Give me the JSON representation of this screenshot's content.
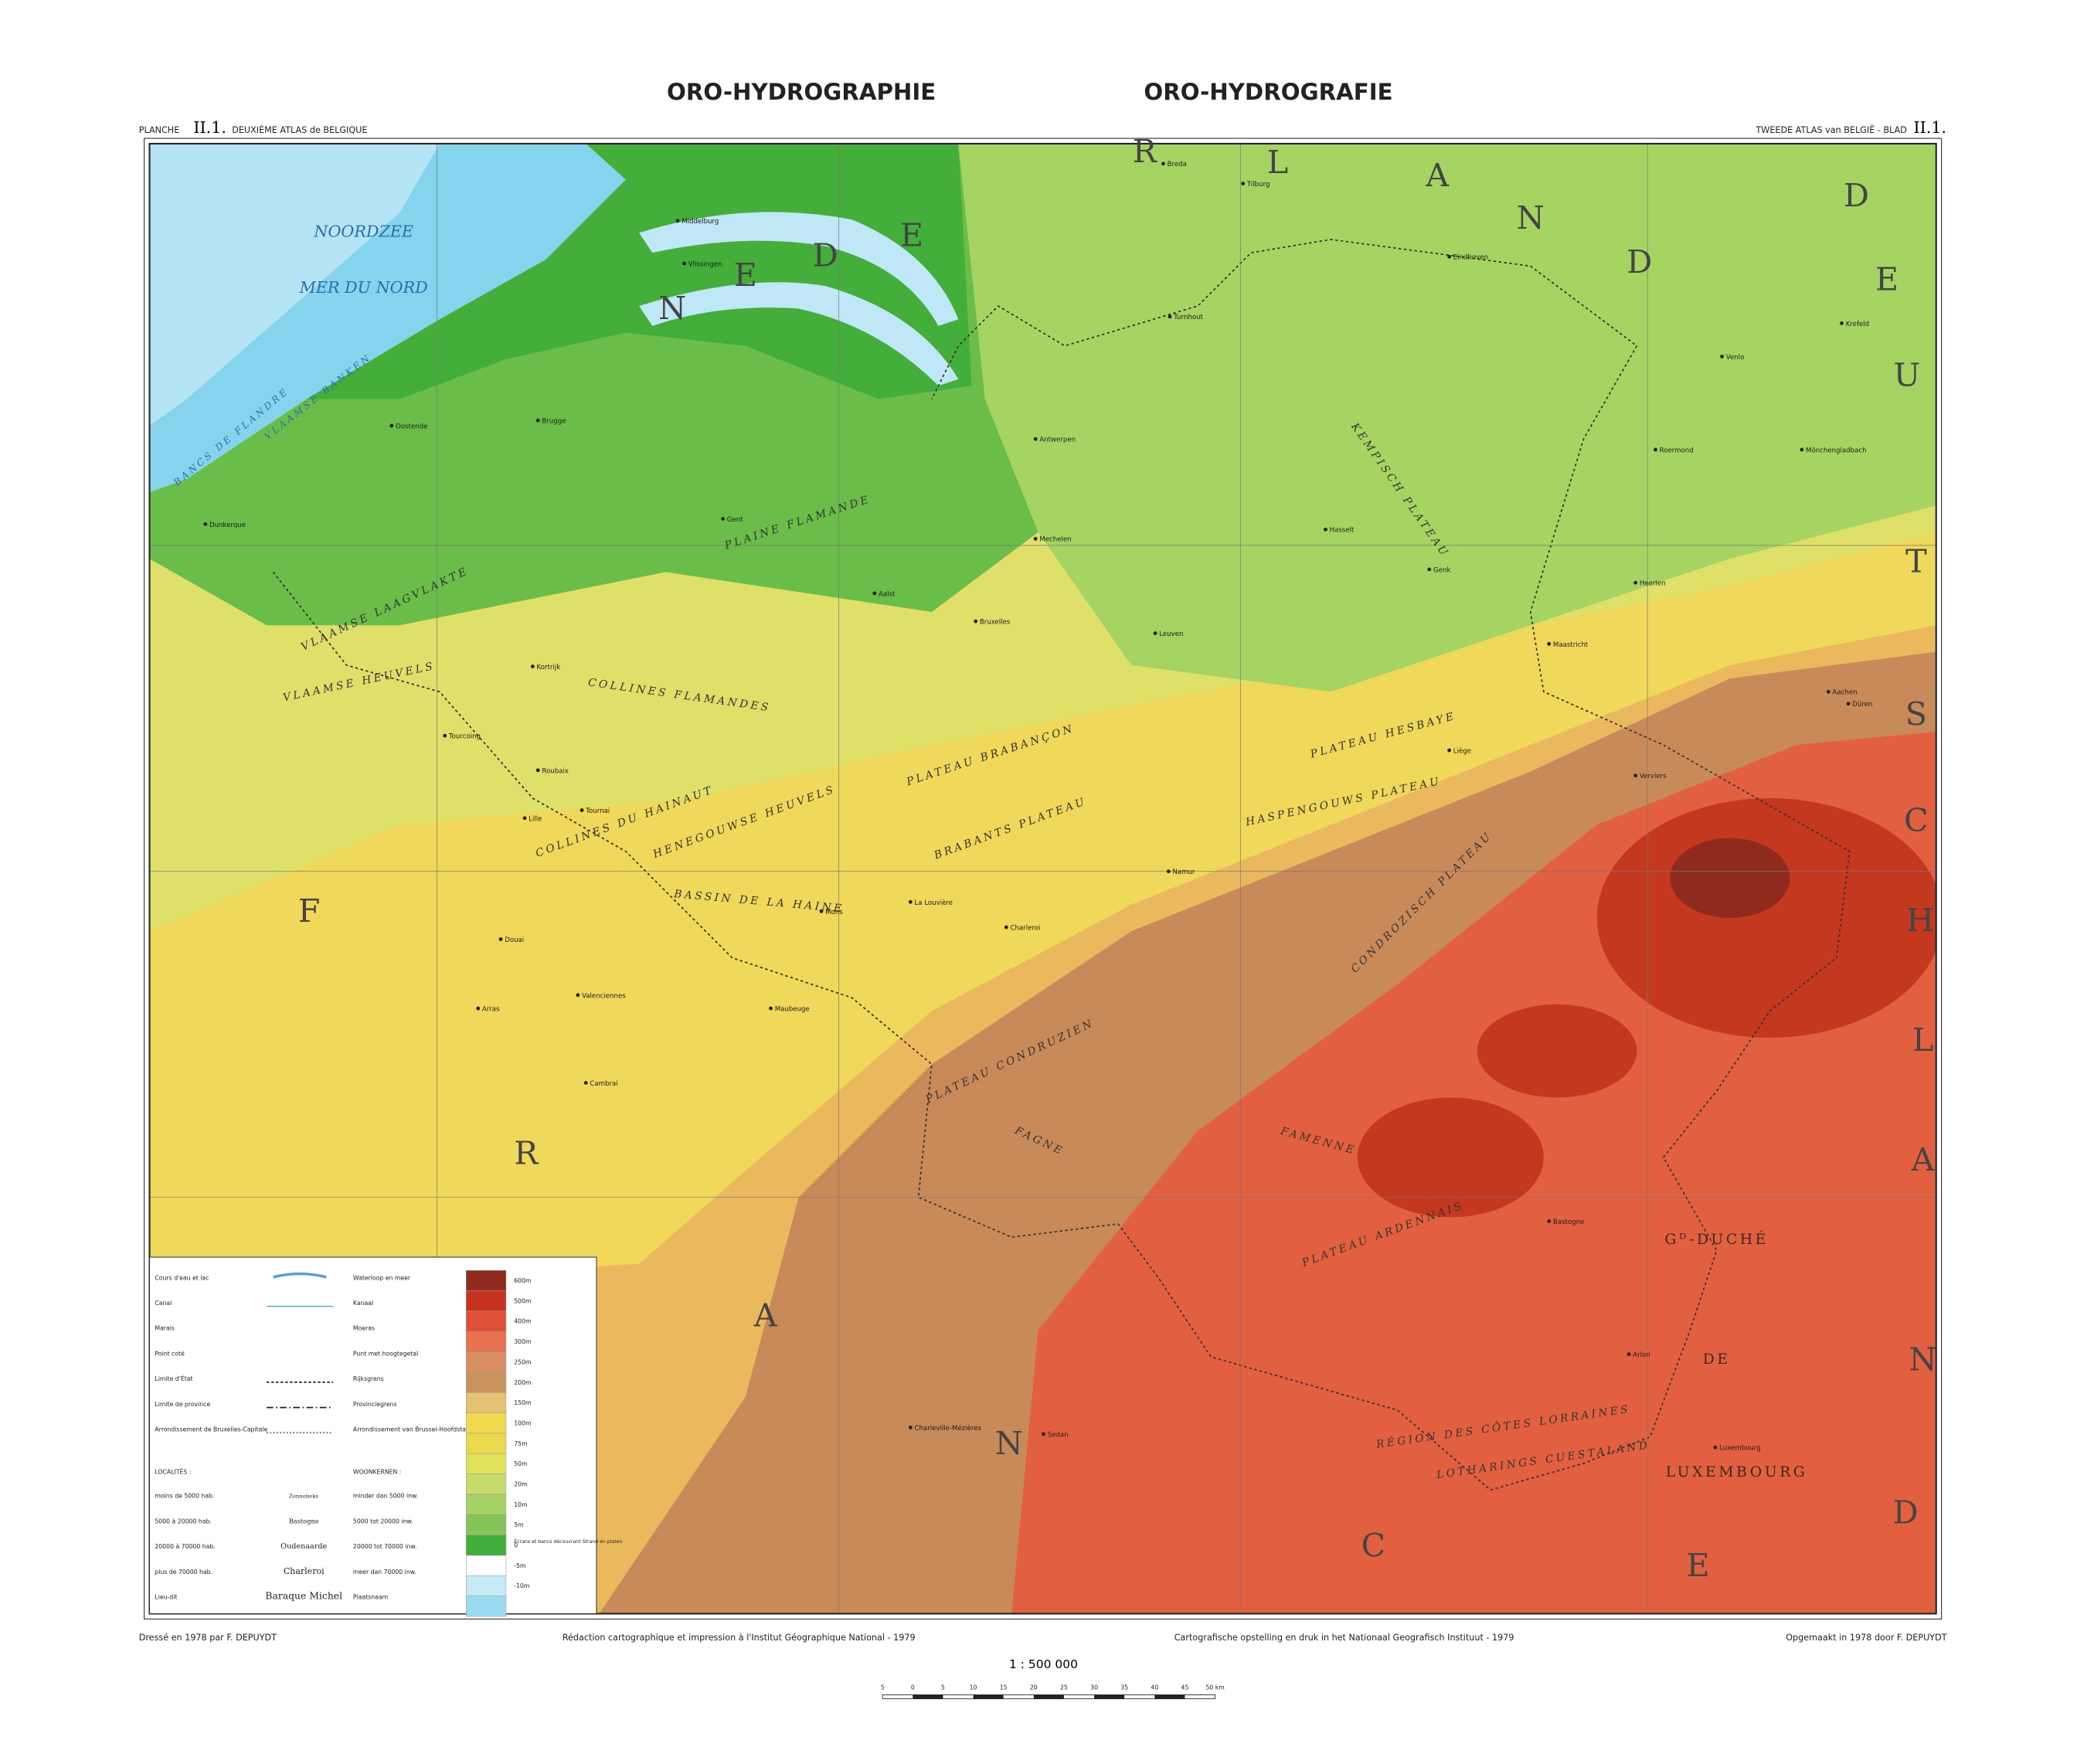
{
  "header": {
    "title_fr": "ORO-HYDROGRAPHIE",
    "title_nl": "ORO-HYDROGRAFIE",
    "planche": "PLANCHE",
    "planche_num": "II.1.",
    "atlas_fr": "DEUXIÈME ATLAS de BELGIQUE",
    "atlas_nl": "TWEEDE ATLAS van BELGIË - BLAD",
    "blad_num": "II.1."
  },
  "countries": [
    "NEDERLAND",
    "DEUTSCHLAND",
    "FRANCE"
  ],
  "sea": [
    "NOORDZEE",
    "MER DU NORD",
    "BANCS DE FLANDRE",
    "VLAAMSE BANKEN"
  ],
  "regions": [
    "PLAINE FLAMANDE",
    "VLAAMSE LAAGVLAKTE",
    "VLAAMSE HEUVELS",
    "COLLINES FLAMANDES",
    "PLATEAU BRABANÇON",
    "BRABANTS PLATEAU",
    "HASPENGOUWS PLATEAU",
    "PLATEAU HESBAYE",
    "CONDROZISCH PLATEAU",
    "PLATEAU CONDRUZIEN",
    "FAGNE",
    "FAMENNE",
    "PLATEAU ARDENNAIS",
    "KEMPISCH PLATEAU",
    "COLLINES DU HAINAUT",
    "HENEGOUWSE HEUVELS",
    "BASSIN DE LA HAINE",
    "RÉGION DES CÔTES LORRAINES",
    "LOTHARINGS CUESTALAND",
    "Gᴰ-DUCHÉ",
    "DE",
    "LUXEMBOURG"
  ],
  "places": [
    "Oostende",
    "Brugge",
    "Gent",
    "Antwerpen",
    "Mechelen",
    "Bruxelles",
    "Leuven",
    "Hasselt",
    "Genk",
    "Liège",
    "Namur",
    "Charleroi",
    "Mons",
    "Tournai",
    "Kortrijk",
    "Lille",
    "Roubaix",
    "Tourcoing",
    "Maastricht",
    "Aachen",
    "Eindhoven",
    "Tilburg",
    "Breda",
    "Middelburg",
    "Vlissingen",
    "Luxembourg",
    "Dunkerque",
    "Valenciennes",
    "Cambrai",
    "Arras",
    "Douai",
    "Maubeuge",
    "Heerlen",
    "Düren",
    "Mönchengladbach",
    "Krefeld",
    "Venlo",
    "Roermond",
    "Turnhout",
    "Verviers",
    "Arlon",
    "Bastogne",
    "Sedan",
    "Charleville-Mézières",
    "La Louvière",
    "Aalst"
  ],
  "legend": {
    "symbols": [
      [
        "Cours d'eau et lac",
        "Waterloop en meer"
      ],
      [
        "Canal",
        "Kanaal"
      ],
      [
        "Marais",
        "Moeras"
      ],
      [
        "Point coté",
        "Punt met hoogtegetal"
      ],
      [
        "Limite d'État",
        "Rijksgrens"
      ],
      [
        "Limite de province",
        "Provinciegrens"
      ],
      [
        "Arrondissement de Bruxelles-Capitale",
        "Arrondissement van Brussel-Hoofdstad"
      ]
    ],
    "localities_fr": "LOCALITÉS :",
    "localities_nl": "WOONKERNEN :",
    "localities": [
      [
        "moins de 5000 hab.",
        "Zonnebeke",
        "minder dan 5000 inw."
      ],
      [
        "5000 à 20000 hab.",
        "Bastogne",
        "5000 tot 20000 inw."
      ],
      [
        "20000 à 70000 hab.",
        "Oudenaarde",
        "20000 tot 70000 inw."
      ],
      [
        "plus de 70000 hab.",
        "Charleroi",
        "meer dan 70000 inw."
      ],
      [
        "Lieu-dit",
        "Baraque Michel",
        "Plaatsnaam"
      ]
    ],
    "elevations": [
      "600m",
      "500m",
      "400m",
      "300m",
      "250m",
      "200m",
      "150m",
      "100m",
      "75m",
      "50m",
      "20m",
      "10m",
      "5m",
      "0",
      "-5m",
      "-10m"
    ],
    "shore_note": "Écrans et bancs découvrant Strand en platen"
  },
  "footer": {
    "left": "Dressé en 1978 par F. DEPUYDT",
    "center_fr": "Rédaction cartographique et impression à l'Institut Géographique National - 1979",
    "center_nl": "Cartografische opstelling en druk in het Nationaal Geografisch Instituut - 1979",
    "right": "Opgemaakt in 1978 door F. DEPUYDT",
    "scale": "1 : 500 000",
    "scale_ticks": [
      "5",
      "0",
      "5",
      "10",
      "15",
      "20",
      "25",
      "30",
      "35",
      "40",
      "45",
      "50 km"
    ]
  }
}
